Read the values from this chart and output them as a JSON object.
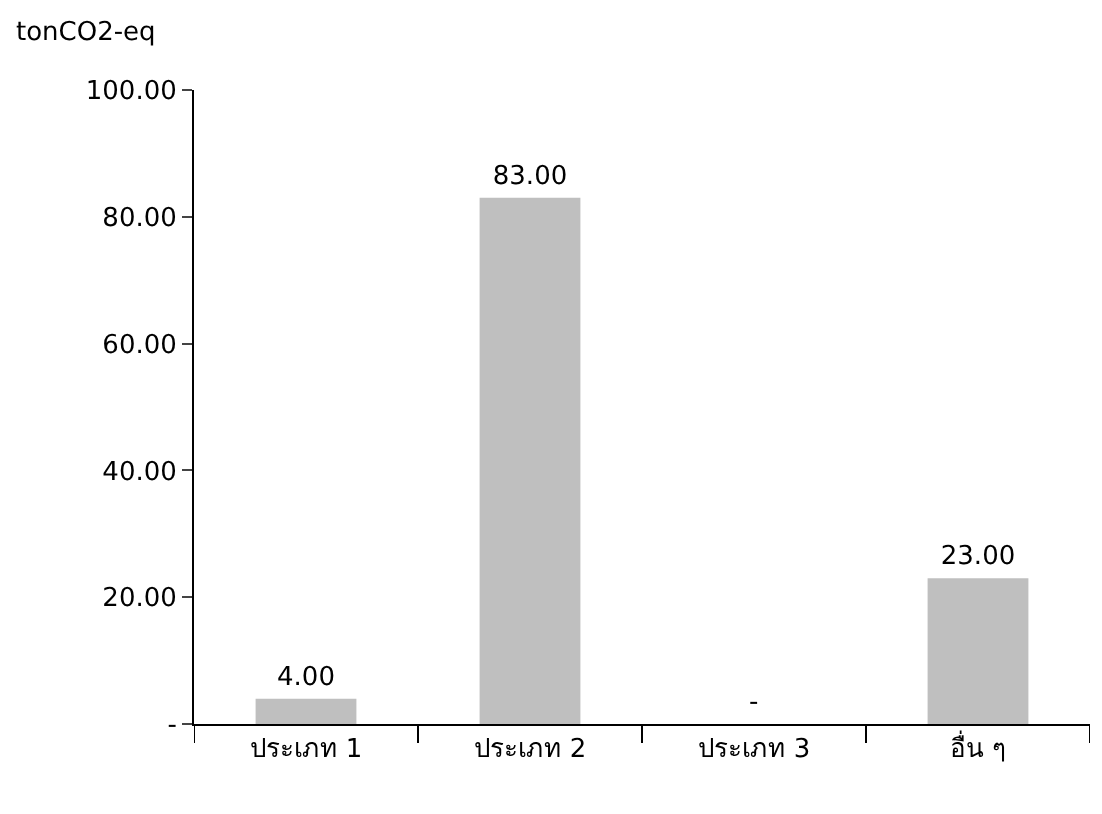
{
  "chart_data": {
    "type": "bar",
    "ylabel": "tonCO2-eq",
    "categories": [
      "ประเภท 1",
      "ประเภท 2",
      "ประเภท 3",
      "อื่น ๆ"
    ],
    "values": [
      4,
      83,
      0,
      23
    ],
    "value_labels": [
      "4.00",
      "83.00",
      "-",
      "23.00"
    ],
    "color": "#bfbfbf",
    "ylim": [
      0,
      100
    ],
    "yticks": [
      {
        "value": 0,
        "label": "-"
      },
      {
        "value": 20,
        "label": "20.00"
      },
      {
        "value": 40,
        "label": "40.00"
      },
      {
        "value": 60,
        "label": "60.00"
      },
      {
        "value": 80,
        "label": "80.00"
      },
      {
        "value": 100,
        "label": "100.00"
      }
    ],
    "legend": false
  }
}
